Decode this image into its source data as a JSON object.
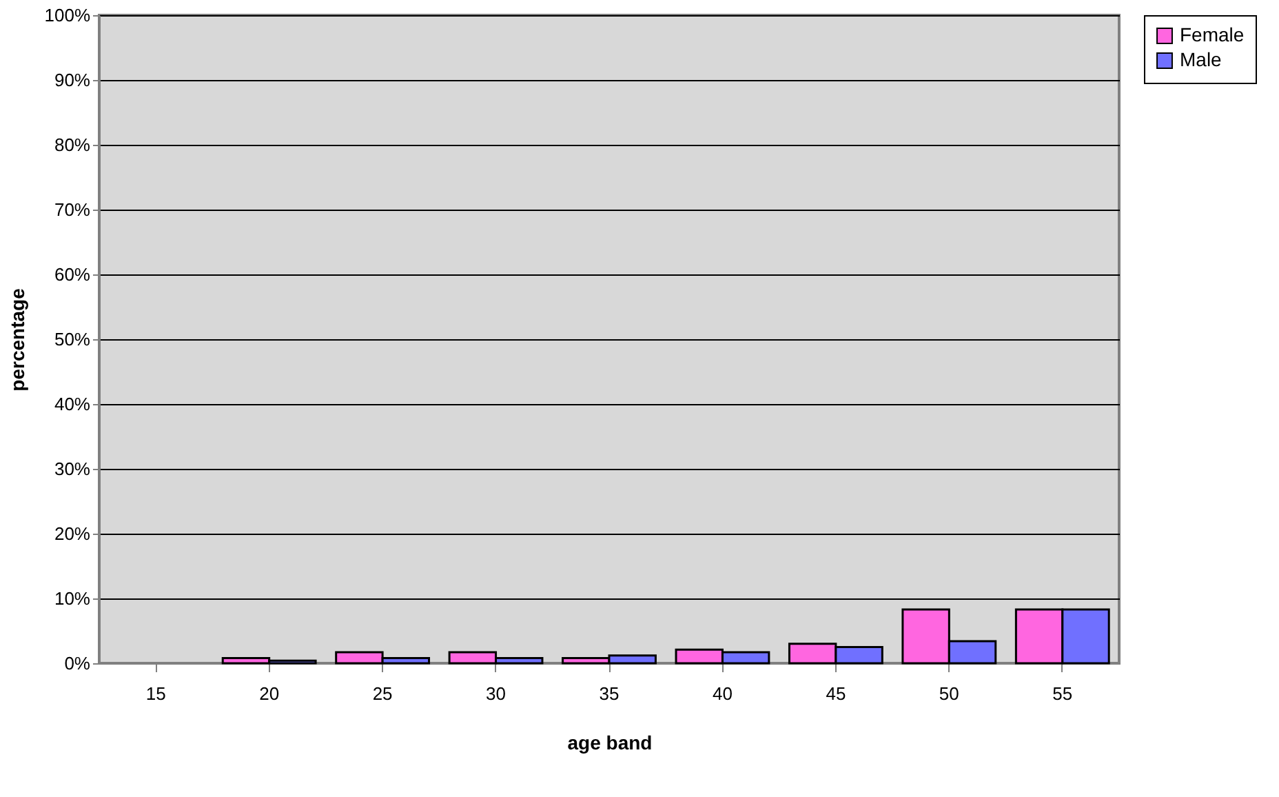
{
  "chart_data": {
    "type": "bar",
    "xlabel": "age band",
    "ylabel": "percentage",
    "categories": [
      "15",
      "20",
      "25",
      "30",
      "35",
      "40",
      "45",
      "50",
      "55"
    ],
    "series": [
      {
        "name": "Female",
        "color": "#ff66e0",
        "values": [
          0,
          0.8,
          1.7,
          1.7,
          0.8,
          2.1,
          3,
          8.3,
          8.3
        ]
      },
      {
        "name": "Male",
        "color": "#7070ff",
        "values": [
          0,
          0.4,
          0.8,
          0.8,
          1.2,
          1.7,
          2.5,
          3.4,
          8.3
        ]
      }
    ],
    "ylim": [
      0,
      100
    ],
    "yticks": [
      {
        "value": 0,
        "label": "0%"
      },
      {
        "value": 10,
        "label": "10%"
      },
      {
        "value": 20,
        "label": "20%"
      },
      {
        "value": 30,
        "label": "30%"
      },
      {
        "value": 40,
        "label": "40%"
      },
      {
        "value": 50,
        "label": "50%"
      },
      {
        "value": 60,
        "label": "60%"
      },
      {
        "value": 70,
        "label": "70%"
      },
      {
        "value": 80,
        "label": "80%"
      },
      {
        "value": 90,
        "label": "90%"
      },
      {
        "value": 100,
        "label": "100%"
      }
    ],
    "grid": "y",
    "legend": "right"
  }
}
